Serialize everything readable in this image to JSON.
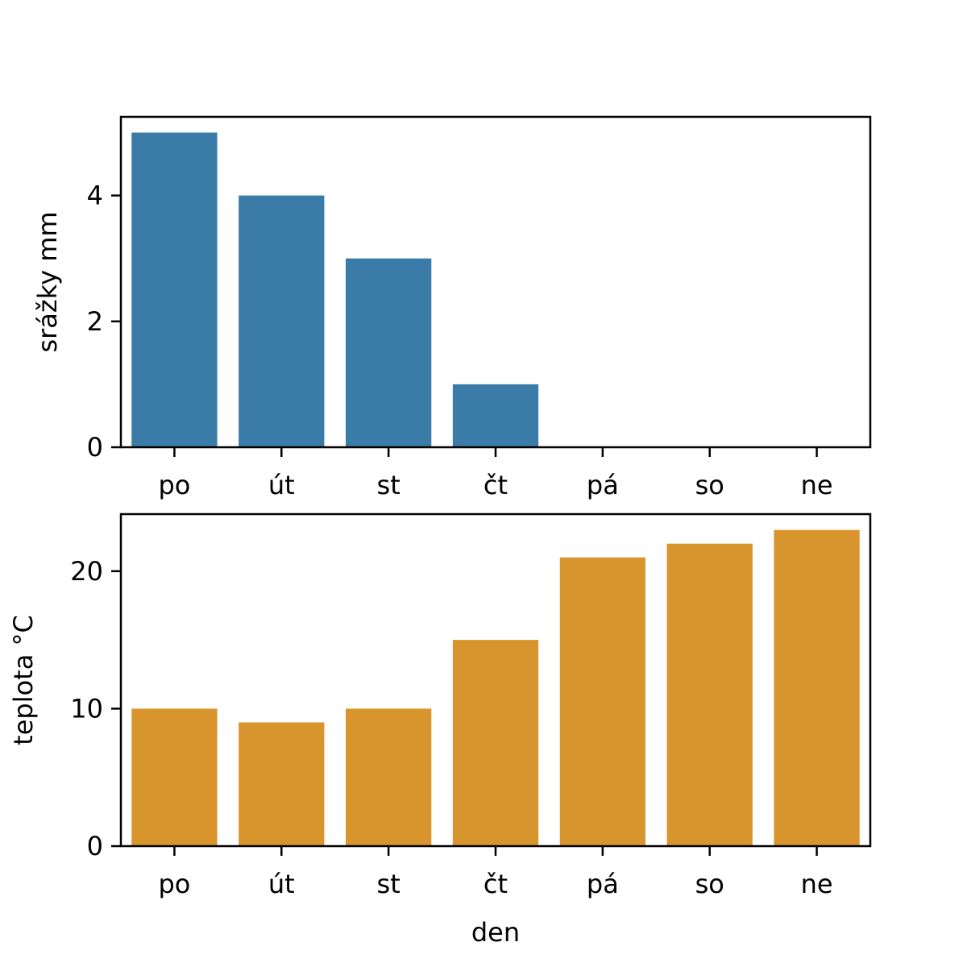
{
  "chart_data": [
    {
      "type": "bar",
      "categories": [
        "po",
        "út",
        "st",
        "čt",
        "pá",
        "so",
        "ne"
      ],
      "values": [
        5,
        4,
        3,
        1,
        0,
        0,
        0
      ],
      "xlabel": "",
      "ylabel": "srážky mm",
      "ylim": [
        0,
        5.25
      ],
      "yticks": [
        0,
        2,
        4
      ],
      "color": "#3a7ba8",
      "grid": false
    },
    {
      "type": "bar",
      "categories": [
        "po",
        "út",
        "st",
        "čt",
        "pá",
        "so",
        "ne"
      ],
      "values": [
        10,
        9,
        10,
        15,
        21,
        22,
        23
      ],
      "xlabel": "den",
      "ylabel": "teplota °C",
      "ylim": [
        0,
        24.15
      ],
      "yticks": [
        0,
        10,
        20
      ],
      "color": "#d8952e",
      "grid": false
    }
  ]
}
